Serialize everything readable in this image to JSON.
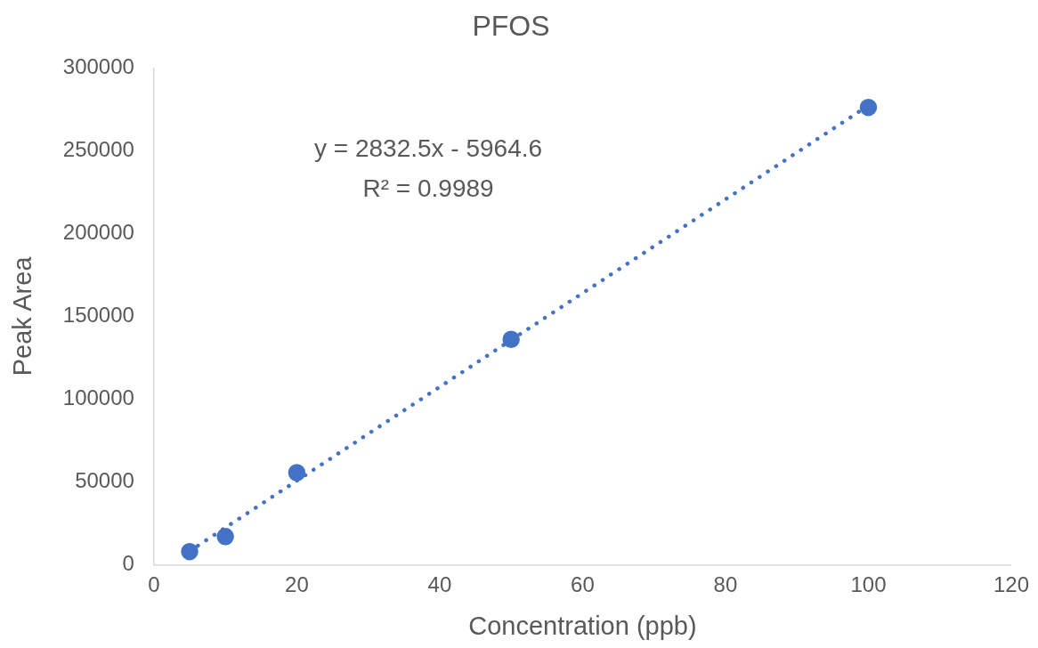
{
  "chart_data": {
    "type": "scatter",
    "title": "PFOS",
    "xlabel": "Concentration (ppb)",
    "ylabel": "Peak Area",
    "x": [
      5,
      10,
      20,
      50,
      100
    ],
    "series": [
      {
        "type": "scatter",
        "color": "#4472c4",
        "marker": "circle",
        "values": [
          7900,
          17000,
          55600,
          136100,
          276200
        ]
      },
      {
        "type": "line",
        "x": [
          5,
          100
        ],
        "color": "#4472c4",
        "marker": "none",
        "line_style": "dotted",
        "values": [
          8200,
          277300
        ]
      }
    ],
    "xlim": [
      0,
      120
    ],
    "xticks": [
      0,
      20,
      40,
      60,
      80,
      100,
      120
    ],
    "ylim": [
      0,
      300000
    ],
    "yticks": [
      0,
      50000,
      100000,
      150000,
      200000,
      250000,
      300000
    ],
    "annotations": [
      "y = 2832.5x - 5964.6",
      "R² = 0.9989"
    ]
  }
}
